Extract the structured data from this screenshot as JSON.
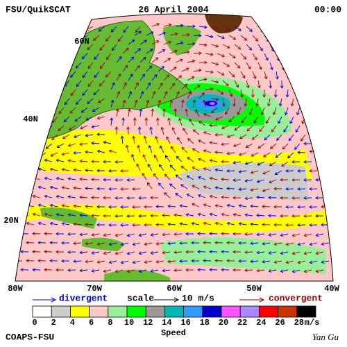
{
  "header": {
    "title": "FSU/QuikSCAT",
    "date": "26 April 2004",
    "time": "00:00"
  },
  "map": {
    "latitude_labels": [
      "60N",
      "40N",
      "20N"
    ],
    "longitude_labels": [
      "80W",
      "70W",
      "60W",
      "50W",
      "40W"
    ]
  },
  "legend": {
    "divergent": "divergent",
    "scale": "scale",
    "scale_value": "10 m/s",
    "convergent": "convergent"
  },
  "speed_scale": {
    "title": "Speed",
    "ticks": [
      0,
      2,
      4,
      6,
      8,
      10,
      12,
      14,
      16,
      18,
      20,
      22,
      24,
      26,
      28
    ],
    "unit": "m/s",
    "colors": [
      "#ffffff",
      "#cccccc",
      "#ffff00",
      "#ffc8c8",
      "#99ee99",
      "#00ff00",
      "#999999",
      "#00b8b8",
      "#3399ff",
      "#0000cc",
      "#ff55ff",
      "#aa88ff",
      "#ff0000",
      "#cc3300",
      "#000000"
    ]
  },
  "footer": {
    "left": "COAPS-FSU",
    "signature": "Yan Gu"
  }
}
